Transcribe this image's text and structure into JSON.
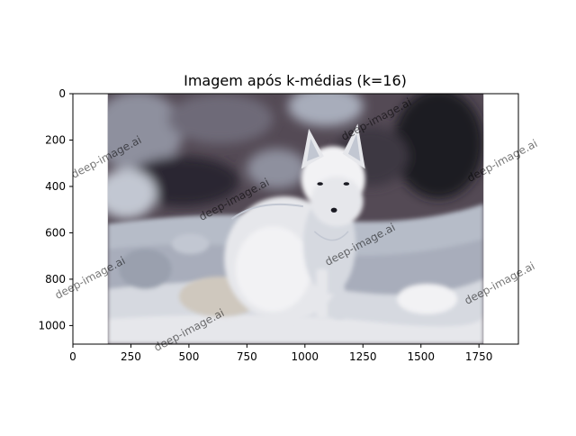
{
  "chart_data": {
    "type": "image",
    "title": "Imagem após k-médias (k=16)",
    "xlabel": "",
    "ylabel": "",
    "xlim": [
      0,
      1920
    ],
    "ylim": [
      1080,
      0
    ],
    "xticks": [
      0,
      250,
      500,
      750,
      1000,
      1250,
      1500,
      1750
    ],
    "yticks": [
      0,
      200,
      400,
      600,
      800,
      1000
    ],
    "image_extent_x": [
      150,
      1770
    ],
    "image_extent_y": [
      0,
      1080
    ],
    "grid": false,
    "legend": "none",
    "image_content": "arctic-fox-in-snow",
    "palette": [
      "#2c2730",
      "#3e3742",
      "#544a55",
      "#6e6a78",
      "#8e909e",
      "#a8adbb",
      "#c2c7d2",
      "#d6d9e0",
      "#e6e7eb",
      "#f2f2f4",
      "#cfc8be",
      "#9aa0ae",
      "#1a1a22",
      "#b6bcc8",
      "#e0ddd6",
      "#7d8394"
    ],
    "watermark": "deep-image.ai"
  }
}
